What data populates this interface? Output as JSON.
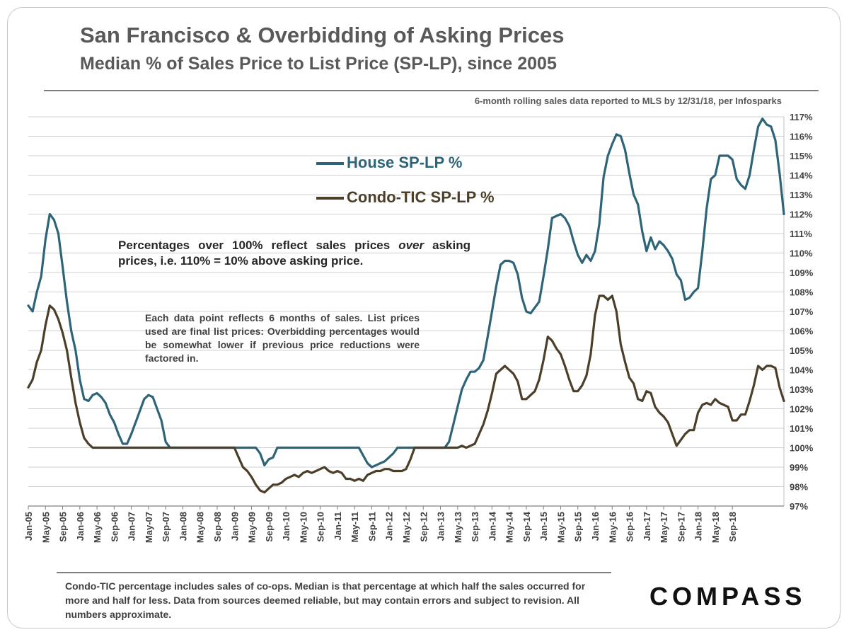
{
  "header": {
    "title": "San Francisco & Overbidding of Asking Prices",
    "subtitle": "Median % of Sales Price to List Price (SP-LP), since 2005",
    "source": "6-month rolling sales data reported to MLS by 12/31/18, per Infosparks"
  },
  "notes": {
    "main_before": "Percentages over 100% reflect sales prices ",
    "main_italic": "over",
    "main_after": " asking prices, i.e. 110% = 10% above asking price.",
    "data_point": "Each data point reflects 6 months of sales. List prices used are final list prices: Overbidding percentages would be somewhat lower if previous price reductions were factored in."
  },
  "footer": {
    "footnote": "Condo-TIC percentage includes sales of co-ops. Median is that percentage at which half the sales occurred for more and half for less. Data from sources deemed reliable, but may contain errors and subject to revision. All numbers approximate.",
    "logo": "COMPASS"
  },
  "chart_data": {
    "type": "line",
    "title": "San Francisco & Overbidding of Asking Prices",
    "ylim": [
      97,
      117
    ],
    "y_ticks": [
      "97%",
      "98%",
      "99%",
      "100%",
      "101%",
      "102%",
      "103%",
      "104%",
      "105%",
      "106%",
      "107%",
      "108%",
      "109%",
      "110%",
      "111%",
      "112%",
      "113%",
      "114%",
      "115%",
      "116%",
      "117%"
    ],
    "x_ticks": [
      "Jan-05",
      "May-05",
      "Sep-05",
      "Jan-06",
      "May-06",
      "Sep-06",
      "Jan-07",
      "May-07",
      "Sep-07",
      "Jan-08",
      "May-08",
      "Sep-08",
      "Jan-09",
      "May-09",
      "Sep-09",
      "Jan-10",
      "May-10",
      "Sep-10",
      "Jan-11",
      "May-11",
      "Sep-11",
      "Jan-12",
      "May-12",
      "Sep-12",
      "Jan-13",
      "May-13",
      "Sep-13",
      "Jan-14",
      "May-14",
      "Sep-14",
      "Jan-15",
      "May-15",
      "Sep-15",
      "Jan-16",
      "May-16",
      "Sep-16",
      "Jan-17",
      "May-17",
      "Sep-17",
      "Jan-18",
      "May-18",
      "Sep-18"
    ],
    "x_start": "Jan-05",
    "x_end": "Dec-18",
    "legend": "upper-center",
    "grid": "horizontal",
    "series": [
      {
        "name": "House SP-LP %",
        "color": "#2e6478",
        "values": [
          107.3,
          107.0,
          108.0,
          108.8,
          110.7,
          112.0,
          111.7,
          111.0,
          109.3,
          107.5,
          106.0,
          105.0,
          103.5,
          102.5,
          102.4,
          102.7,
          102.8,
          102.6,
          102.3,
          101.7,
          101.3,
          100.7,
          100.2,
          100.2,
          100.7,
          101.3,
          101.9,
          102.5,
          102.7,
          102.6,
          102.0,
          101.4,
          100.3,
          100.0,
          100.0,
          100.0,
          100.0,
          100.0,
          100.0,
          100.0,
          100.0,
          100.0,
          100.0,
          100.0,
          100.0,
          100.0,
          100.0,
          100.0,
          100.0,
          100.0,
          100.0,
          100.0,
          100.0,
          100.0,
          99.7,
          99.1,
          99.4,
          99.5,
          100.0,
          100.0,
          100.0,
          100.0,
          100.0,
          100.0,
          100.0,
          100.0,
          100.0,
          100.0,
          100.0,
          100.0,
          100.0,
          100.0,
          100.0,
          100.0,
          100.0,
          100.0,
          100.0,
          100.0,
          99.6,
          99.2,
          99.0,
          99.1,
          99.2,
          99.3,
          99.5,
          99.7,
          100.0,
          100.0,
          100.0,
          100.0,
          100.0,
          100.0,
          100.0,
          100.0,
          100.0,
          100.0,
          100.0,
          100.0,
          100.3,
          101.2,
          102.1,
          103.0,
          103.5,
          103.9,
          103.9,
          104.1,
          104.5,
          105.7,
          107.0,
          108.3,
          109.4,
          109.6,
          109.6,
          109.5,
          108.9,
          107.7,
          107.0,
          106.9,
          107.2,
          107.5,
          108.8,
          110.2,
          111.8,
          111.9,
          112.0,
          111.8,
          111.4,
          110.6,
          109.9,
          109.5,
          109.9,
          109.6,
          110.1,
          111.5,
          113.9,
          115.0,
          115.6,
          116.1,
          116.0,
          115.3,
          114.1,
          113.0,
          112.5,
          111.1,
          110.1,
          110.8,
          110.2,
          110.6,
          110.4,
          110.1,
          109.7,
          108.9,
          108.6,
          107.6,
          107.7,
          108.0,
          108.2,
          110.1,
          112.3,
          113.8,
          114.0,
          115.0,
          115.0,
          115.0,
          114.8,
          113.8,
          113.5,
          113.3,
          114.0,
          115.3,
          116.5,
          116.9,
          116.6,
          116.5,
          115.8,
          114.1,
          112.0
        ]
      },
      {
        "name": "Condo-TIC SP-LP %",
        "color": "#4b3f2a",
        "values": [
          103.1,
          103.5,
          104.4,
          105.0,
          106.3,
          107.3,
          107.1,
          106.6,
          105.9,
          105.0,
          103.6,
          102.3,
          101.3,
          100.5,
          100.2,
          100.0,
          100.0,
          100.0,
          100.0,
          100.0,
          100.0,
          100.0,
          100.0,
          100.0,
          100.0,
          100.0,
          100.0,
          100.0,
          100.0,
          100.0,
          100.0,
          100.0,
          100.0,
          100.0,
          100.0,
          100.0,
          100.0,
          100.0,
          100.0,
          100.0,
          100.0,
          100.0,
          100.0,
          100.0,
          100.0,
          100.0,
          100.0,
          100.0,
          100.0,
          99.5,
          99.0,
          98.8,
          98.5,
          98.1,
          97.8,
          97.7,
          97.9,
          98.1,
          98.1,
          98.2,
          98.4,
          98.5,
          98.6,
          98.5,
          98.7,
          98.8,
          98.7,
          98.8,
          98.9,
          99.0,
          98.8,
          98.7,
          98.8,
          98.7,
          98.4,
          98.4,
          98.3,
          98.4,
          98.3,
          98.6,
          98.7,
          98.8,
          98.8,
          98.9,
          98.9,
          98.8,
          98.8,
          98.8,
          98.9,
          99.4,
          100.0,
          100.0,
          100.0,
          100.0,
          100.0,
          100.0,
          100.0,
          100.0,
          100.0,
          100.0,
          100.0,
          100.1,
          100.0,
          100.1,
          100.2,
          100.7,
          101.2,
          101.9,
          102.8,
          103.8,
          104.0,
          104.2,
          104.0,
          103.8,
          103.4,
          102.5,
          102.5,
          102.7,
          102.9,
          103.5,
          104.5,
          105.7,
          105.5,
          105.1,
          104.8,
          104.2,
          103.5,
          102.9,
          102.9,
          103.2,
          103.7,
          104.8,
          106.8,
          107.8,
          107.8,
          107.6,
          107.8,
          107.0,
          105.3,
          104.4,
          103.6,
          103.3,
          102.5,
          102.4,
          102.9,
          102.8,
          102.1,
          101.8,
          101.6,
          101.3,
          100.7,
          100.1,
          100.4,
          100.7,
          100.9,
          100.9,
          101.8,
          102.2,
          102.3,
          102.2,
          102.5,
          102.3,
          102.2,
          102.1,
          101.4,
          101.4,
          101.7,
          101.7,
          102.4,
          103.2,
          104.2,
          104.0,
          104.2,
          104.2,
          104.1,
          103.1,
          102.4
        ]
      }
    ]
  }
}
